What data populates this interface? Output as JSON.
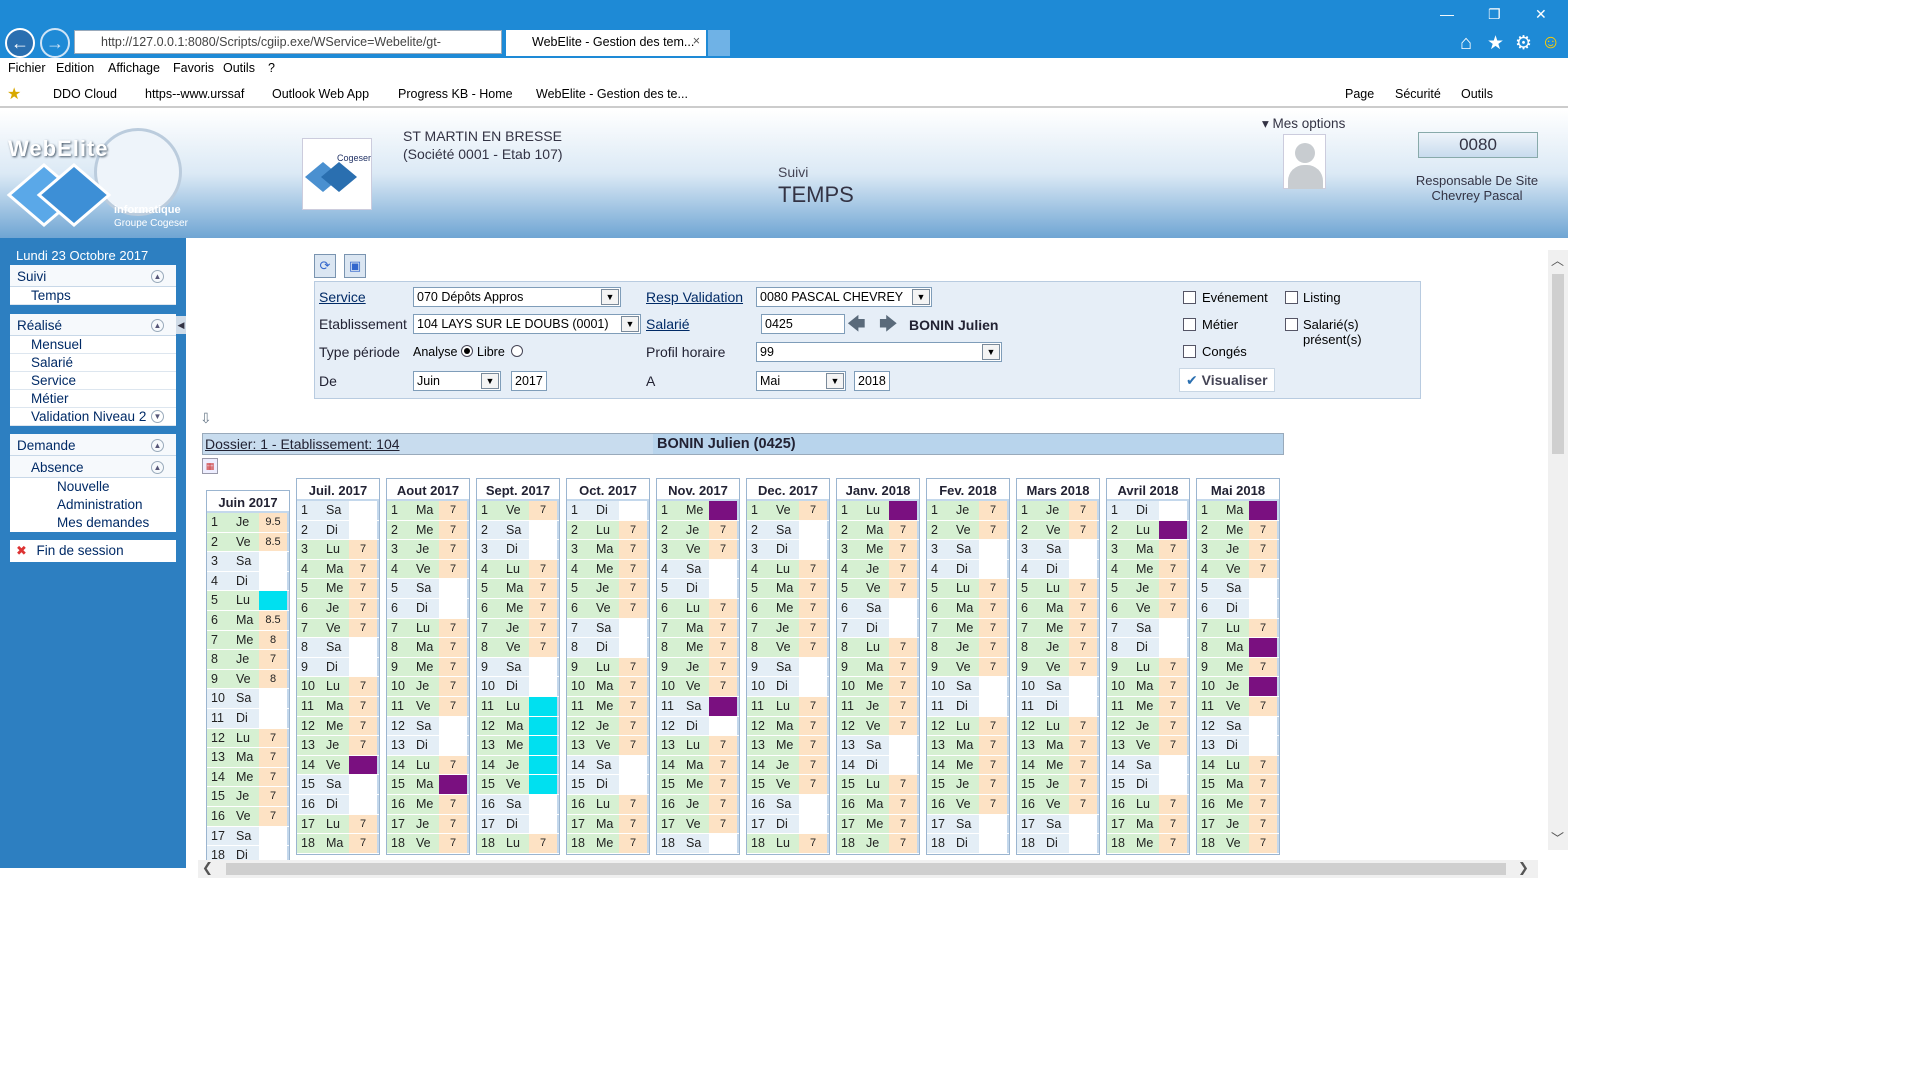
{
  "browser": {
    "url": "http://127.0.0.1:8080/Scripts/cgiip.exe/WService=Webelite/gt-",
    "tab_title": "WebElite - Gestion des tem...",
    "menu": [
      "Fichier",
      "Edition",
      "Affichage",
      "Favoris",
      "Outils",
      "?"
    ],
    "favorites": [
      "DDO Cloud",
      "https--www.urssaf",
      "Outlook Web App",
      "Progress KB - Home",
      "WebElite - Gestion des te..."
    ],
    "cmdbar": [
      "Page",
      "Sécurité",
      "Outils"
    ]
  },
  "header": {
    "logo_text": "WebElite",
    "logo_sub": "informatique",
    "logo_sub2": "Groupe Cogeser",
    "company_line1": "ST MARTIN EN BRESSE",
    "company_line2": "(Société 0001 - Etab 107)",
    "module_small": "Suivi",
    "module_big": "TEMPS",
    "options": "Mes options",
    "user_code": "0080",
    "user_role": "Responsable De Site",
    "user_name": "Chevrey Pascal"
  },
  "sidebar": {
    "date": "Lundi 23 Octobre 2017",
    "suivi": "Suivi",
    "temps": "Temps",
    "realise": "Réalisé",
    "mensuel": "Mensuel",
    "salarie": "Salarié",
    "service": "Service",
    "metier": "Métier",
    "validation": "Validation Niveau 2",
    "demande": "Demande",
    "absence": "Absence",
    "nouvelle": "Nouvelle",
    "administration": "Administration",
    "mes_demandes": "Mes demandes",
    "fin": "Fin de session"
  },
  "form": {
    "service_label": "Service",
    "service_value": "070 Dépôts Appros",
    "etab_label": "Etablissement",
    "etab_value": "104 LAYS SUR LE DOUBS (0001)",
    "type_label": "Type période",
    "analyse": "Analyse",
    "libre": "Libre",
    "de_label": "De",
    "de_month": "Juin",
    "de_year": "2017",
    "resp_label": "Resp Validation",
    "resp_value": "0080 PASCAL CHEVREY",
    "salarie_label": "Salarié",
    "salarie_value": "0425",
    "salarie_name": "BONIN Julien",
    "profil_label": "Profil horaire",
    "profil_value": "99",
    "a_label": "A",
    "a_month": "Mai",
    "a_year": "2018",
    "evenement": "Evénement",
    "metier": "Métier",
    "conges": "Congés",
    "listing": "Listing",
    "presents": "Salarié(s) présent(s)",
    "visualiser": "Visualiser"
  },
  "dossier": {
    "label": "Dossier: 1 - Etablissement: 104",
    "employee": "BONIN Julien (0425)"
  },
  "colors": {
    "worked": "#fde2c4",
    "absence": "#7a1080",
    "conges": "#00e0f0",
    "weekday": "#d6f0d2"
  },
  "calendar": [
    {
      "title": "Juin 2017",
      "days": [
        [
          "1",
          "Je",
          "9.5"
        ],
        [
          "2",
          "Ve",
          "8.5"
        ],
        [
          "3",
          "Sa",
          ""
        ],
        [
          "4",
          "Di",
          ""
        ],
        [
          "5",
          "Lu",
          "C"
        ],
        [
          "6",
          "Ma",
          "8.5"
        ],
        [
          "7",
          "Me",
          "8"
        ],
        [
          "8",
          "Je",
          "7"
        ],
        [
          "9",
          "Ve",
          "8"
        ],
        [
          "10",
          "Sa",
          ""
        ],
        [
          "11",
          "Di",
          ""
        ],
        [
          "12",
          "Lu",
          "7"
        ],
        [
          "13",
          "Ma",
          "7"
        ],
        [
          "14",
          "Me",
          "7"
        ],
        [
          "15",
          "Je",
          "7"
        ],
        [
          "16",
          "Ve",
          "7"
        ],
        [
          "17",
          "Sa",
          ""
        ],
        [
          "18",
          "Di",
          ""
        ]
      ]
    },
    {
      "title": "Juil. 2017",
      "days": [
        [
          "1",
          "Sa",
          ""
        ],
        [
          "2",
          "Di",
          ""
        ],
        [
          "3",
          "Lu",
          "7"
        ],
        [
          "4",
          "Ma",
          "7"
        ],
        [
          "5",
          "Me",
          "7"
        ],
        [
          "6",
          "Je",
          "7"
        ],
        [
          "7",
          "Ve",
          "7"
        ],
        [
          "8",
          "Sa",
          ""
        ],
        [
          "9",
          "Di",
          ""
        ],
        [
          "10",
          "Lu",
          "7"
        ],
        [
          "11",
          "Ma",
          "7"
        ],
        [
          "12",
          "Me",
          "7"
        ],
        [
          "13",
          "Je",
          "7"
        ],
        [
          "14",
          "Ve",
          "P"
        ],
        [
          "15",
          "Sa",
          ""
        ],
        [
          "16",
          "Di",
          ""
        ],
        [
          "17",
          "Lu",
          "7"
        ],
        [
          "18",
          "Ma",
          "7"
        ]
      ]
    },
    {
      "title": "Aout 2017",
      "days": [
        [
          "1",
          "Ma",
          "7"
        ],
        [
          "2",
          "Me",
          "7"
        ],
        [
          "3",
          "Je",
          "7"
        ],
        [
          "4",
          "Ve",
          "7"
        ],
        [
          "5",
          "Sa",
          ""
        ],
        [
          "6",
          "Di",
          ""
        ],
        [
          "7",
          "Lu",
          "7"
        ],
        [
          "8",
          "Ma",
          "7"
        ],
        [
          "9",
          "Me",
          "7"
        ],
        [
          "10",
          "Je",
          "7"
        ],
        [
          "11",
          "Ve",
          "7"
        ],
        [
          "12",
          "Sa",
          ""
        ],
        [
          "13",
          "Di",
          ""
        ],
        [
          "14",
          "Lu",
          "7"
        ],
        [
          "15",
          "Ma",
          "P"
        ],
        [
          "16",
          "Me",
          "7"
        ],
        [
          "17",
          "Je",
          "7"
        ],
        [
          "18",
          "Ve",
          "7"
        ]
      ]
    },
    {
      "title": "Sept. 2017",
      "days": [
        [
          "1",
          "Ve",
          "7"
        ],
        [
          "2",
          "Sa",
          ""
        ],
        [
          "3",
          "Di",
          ""
        ],
        [
          "4",
          "Lu",
          "7"
        ],
        [
          "5",
          "Ma",
          "7"
        ],
        [
          "6",
          "Me",
          "7"
        ],
        [
          "7",
          "Je",
          "7"
        ],
        [
          "8",
          "Ve",
          "7"
        ],
        [
          "9",
          "Sa",
          ""
        ],
        [
          "10",
          "Di",
          ""
        ],
        [
          "11",
          "Lu",
          "C"
        ],
        [
          "12",
          "Ma",
          "C"
        ],
        [
          "13",
          "Me",
          "C"
        ],
        [
          "14",
          "Je",
          "C"
        ],
        [
          "15",
          "Ve",
          "C"
        ],
        [
          "16",
          "Sa",
          ""
        ],
        [
          "17",
          "Di",
          ""
        ],
        [
          "18",
          "Lu",
          "7"
        ]
      ]
    },
    {
      "title": "Oct. 2017",
      "days": [
        [
          "1",
          "Di",
          ""
        ],
        [
          "2",
          "Lu",
          "7"
        ],
        [
          "3",
          "Ma",
          "7"
        ],
        [
          "4",
          "Me",
          "7"
        ],
        [
          "5",
          "Je",
          "7"
        ],
        [
          "6",
          "Ve",
          "7"
        ],
        [
          "7",
          "Sa",
          ""
        ],
        [
          "8",
          "Di",
          ""
        ],
        [
          "9",
          "Lu",
          "7"
        ],
        [
          "10",
          "Ma",
          "7"
        ],
        [
          "11",
          "Me",
          "7"
        ],
        [
          "12",
          "Je",
          "7"
        ],
        [
          "13",
          "Ve",
          "7"
        ],
        [
          "14",
          "Sa",
          ""
        ],
        [
          "15",
          "Di",
          ""
        ],
        [
          "16",
          "Lu",
          "7"
        ],
        [
          "17",
          "Ma",
          "7"
        ],
        [
          "18",
          "Me",
          "7"
        ]
      ]
    },
    {
      "title": "Nov. 2017",
      "days": [
        [
          "1",
          "Me",
          "P"
        ],
        [
          "2",
          "Je",
          "7"
        ],
        [
          "3",
          "Ve",
          "7"
        ],
        [
          "4",
          "Sa",
          ""
        ],
        [
          "5",
          "Di",
          ""
        ],
        [
          "6",
          "Lu",
          "7"
        ],
        [
          "7",
          "Ma",
          "7"
        ],
        [
          "8",
          "Me",
          "7"
        ],
        [
          "9",
          "Je",
          "7"
        ],
        [
          "10",
          "Ve",
          "7"
        ],
        [
          "11",
          "Sa",
          "P"
        ],
        [
          "12",
          "Di",
          ""
        ],
        [
          "13",
          "Lu",
          "7"
        ],
        [
          "14",
          "Ma",
          "7"
        ],
        [
          "15",
          "Me",
          "7"
        ],
        [
          "16",
          "Je",
          "7"
        ],
        [
          "17",
          "Ve",
          "7"
        ],
        [
          "18",
          "Sa",
          ""
        ]
      ]
    },
    {
      "title": "Dec. 2017",
      "days": [
        [
          "1",
          "Ve",
          "7"
        ],
        [
          "2",
          "Sa",
          ""
        ],
        [
          "3",
          "Di",
          ""
        ],
        [
          "4",
          "Lu",
          "7"
        ],
        [
          "5",
          "Ma",
          "7"
        ],
        [
          "6",
          "Me",
          "7"
        ],
        [
          "7",
          "Je",
          "7"
        ],
        [
          "8",
          "Ve",
          "7"
        ],
        [
          "9",
          "Sa",
          ""
        ],
        [
          "10",
          "Di",
          ""
        ],
        [
          "11",
          "Lu",
          "7"
        ],
        [
          "12",
          "Ma",
          "7"
        ],
        [
          "13",
          "Me",
          "7"
        ],
        [
          "14",
          "Je",
          "7"
        ],
        [
          "15",
          "Ve",
          "7"
        ],
        [
          "16",
          "Sa",
          ""
        ],
        [
          "17",
          "Di",
          ""
        ],
        [
          "18",
          "Lu",
          "7"
        ]
      ]
    },
    {
      "title": "Janv. 2018",
      "days": [
        [
          "1",
          "Lu",
          "P"
        ],
        [
          "2",
          "Ma",
          "7"
        ],
        [
          "3",
          "Me",
          "7"
        ],
        [
          "4",
          "Je",
          "7"
        ],
        [
          "5",
          "Ve",
          "7"
        ],
        [
          "6",
          "Sa",
          ""
        ],
        [
          "7",
          "Di",
          ""
        ],
        [
          "8",
          "Lu",
          "7"
        ],
        [
          "9",
          "Ma",
          "7"
        ],
        [
          "10",
          "Me",
          "7"
        ],
        [
          "11",
          "Je",
          "7"
        ],
        [
          "12",
          "Ve",
          "7"
        ],
        [
          "13",
          "Sa",
          ""
        ],
        [
          "14",
          "Di",
          ""
        ],
        [
          "15",
          "Lu",
          "7"
        ],
        [
          "16",
          "Ma",
          "7"
        ],
        [
          "17",
          "Me",
          "7"
        ],
        [
          "18",
          "Je",
          "7"
        ]
      ]
    },
    {
      "title": "Fev. 2018",
      "days": [
        [
          "1",
          "Je",
          "7"
        ],
        [
          "2",
          "Ve",
          "7"
        ],
        [
          "3",
          "Sa",
          ""
        ],
        [
          "4",
          "Di",
          ""
        ],
        [
          "5",
          "Lu",
          "7"
        ],
        [
          "6",
          "Ma",
          "7"
        ],
        [
          "7",
          "Me",
          "7"
        ],
        [
          "8",
          "Je",
          "7"
        ],
        [
          "9",
          "Ve",
          "7"
        ],
        [
          "10",
          "Sa",
          ""
        ],
        [
          "11",
          "Di",
          ""
        ],
        [
          "12",
          "Lu",
          "7"
        ],
        [
          "13",
          "Ma",
          "7"
        ],
        [
          "14",
          "Me",
          "7"
        ],
        [
          "15",
          "Je",
          "7"
        ],
        [
          "16",
          "Ve",
          "7"
        ],
        [
          "17",
          "Sa",
          ""
        ],
        [
          "18",
          "Di",
          ""
        ]
      ]
    },
    {
      "title": "Mars 2018",
      "days": [
        [
          "1",
          "Je",
          "7"
        ],
        [
          "2",
          "Ve",
          "7"
        ],
        [
          "3",
          "Sa",
          ""
        ],
        [
          "4",
          "Di",
          ""
        ],
        [
          "5",
          "Lu",
          "7"
        ],
        [
          "6",
          "Ma",
          "7"
        ],
        [
          "7",
          "Me",
          "7"
        ],
        [
          "8",
          "Je",
          "7"
        ],
        [
          "9",
          "Ve",
          "7"
        ],
        [
          "10",
          "Sa",
          ""
        ],
        [
          "11",
          "Di",
          ""
        ],
        [
          "12",
          "Lu",
          "7"
        ],
        [
          "13",
          "Ma",
          "7"
        ],
        [
          "14",
          "Me",
          "7"
        ],
        [
          "15",
          "Je",
          "7"
        ],
        [
          "16",
          "Ve",
          "7"
        ],
        [
          "17",
          "Sa",
          ""
        ],
        [
          "18",
          "Di",
          ""
        ]
      ]
    },
    {
      "title": "Avril 2018",
      "days": [
        [
          "1",
          "Di",
          ""
        ],
        [
          "2",
          "Lu",
          "P"
        ],
        [
          "3",
          "Ma",
          "7"
        ],
        [
          "4",
          "Me",
          "7"
        ],
        [
          "5",
          "Je",
          "7"
        ],
        [
          "6",
          "Ve",
          "7"
        ],
        [
          "7",
          "Sa",
          ""
        ],
        [
          "8",
          "Di",
          ""
        ],
        [
          "9",
          "Lu",
          "7"
        ],
        [
          "10",
          "Ma",
          "7"
        ],
        [
          "11",
          "Me",
          "7"
        ],
        [
          "12",
          "Je",
          "7"
        ],
        [
          "13",
          "Ve",
          "7"
        ],
        [
          "14",
          "Sa",
          ""
        ],
        [
          "15",
          "Di",
          ""
        ],
        [
          "16",
          "Lu",
          "7"
        ],
        [
          "17",
          "Ma",
          "7"
        ],
        [
          "18",
          "Me",
          "7"
        ]
      ]
    },
    {
      "title": "Mai 2018",
      "days": [
        [
          "1",
          "Ma",
          "P"
        ],
        [
          "2",
          "Me",
          "7"
        ],
        [
          "3",
          "Je",
          "7"
        ],
        [
          "4",
          "Ve",
          "7"
        ],
        [
          "5",
          "Sa",
          ""
        ],
        [
          "6",
          "Di",
          ""
        ],
        [
          "7",
          "Lu",
          "7"
        ],
        [
          "8",
          "Ma",
          "P"
        ],
        [
          "9",
          "Me",
          "7"
        ],
        [
          "10",
          "Je",
          "P"
        ],
        [
          "11",
          "Ve",
          "7"
        ],
        [
          "12",
          "Sa",
          ""
        ],
        [
          "13",
          "Di",
          ""
        ],
        [
          "14",
          "Lu",
          "7"
        ],
        [
          "15",
          "Ma",
          "7"
        ],
        [
          "16",
          "Me",
          "7"
        ],
        [
          "17",
          "Je",
          "7"
        ],
        [
          "18",
          "Ve",
          "7"
        ]
      ]
    }
  ]
}
